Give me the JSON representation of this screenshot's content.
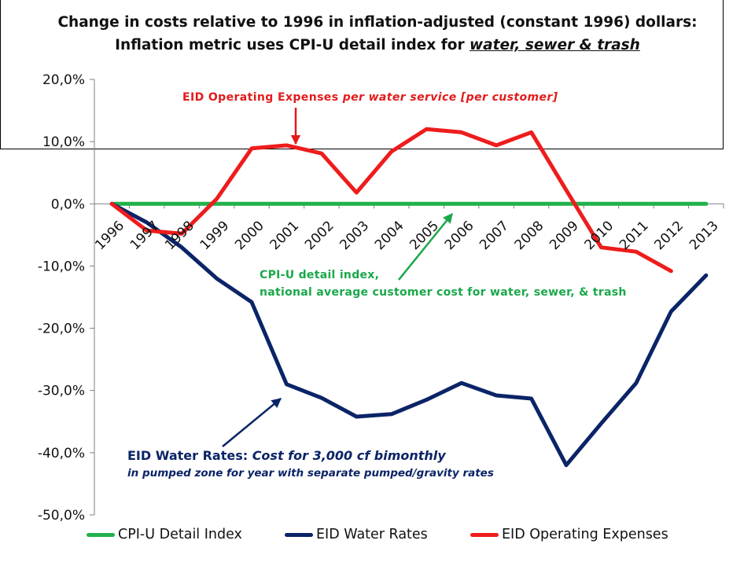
{
  "title_line1": "Change in costs relative to 1996 in inflation-adjusted (constant 1996) dollars:",
  "title_line2_plain": "Inflation metric uses CPI-U detail index for ",
  "title_line2_em": "water, sewer & trash",
  "chart_data": {
    "type": "line",
    "x": [
      "1996",
      "1997",
      "1998",
      "1999",
      "2000",
      "2001",
      "2002",
      "2003",
      "2004",
      "2005",
      "2006",
      "2007",
      "2008",
      "2009",
      "2010",
      "2011",
      "2012",
      "2013"
    ],
    "ylim": [
      -50,
      20
    ],
    "yticks": [
      "20,0%",
      "10,0%",
      "0,0%",
      "-10,0%",
      "-20,0%",
      "-30,0%",
      "-40,0%",
      "-50,0%"
    ],
    "grid": false,
    "legend_position": "bottom",
    "series": [
      {
        "name": "CPI-U Detail Index",
        "color": "#22b14c",
        "values": [
          0,
          0,
          0,
          0,
          0,
          0,
          0,
          0,
          0,
          0,
          0,
          0,
          0,
          0,
          0,
          0,
          0,
          0
        ]
      },
      {
        "name": "EID Water Rates",
        "color": "#0b2467",
        "values": [
          0,
          -3,
          -7,
          -12,
          -15.8,
          -29,
          -31.2,
          -34.2,
          -33.8,
          -31.5,
          -28.8,
          -30.8,
          -31.3,
          -42,
          -35.3,
          -28.8,
          -17.3,
          -11.5
        ]
      },
      {
        "name": "EID Operating Expenses",
        "color": "#ee1c1c",
        "values": [
          0,
          -4.3,
          -4.8,
          0.8,
          8.9,
          9.4,
          8.1,
          1.8,
          8.4,
          12,
          11.5,
          9.4,
          11.5,
          2.2,
          -7,
          -7.7,
          -10.8,
          null
        ]
      }
    ],
    "annotations": {
      "opex_label_plain": "EID Operating Expenses ",
      "opex_label_em": "per water service [per customer]",
      "cpi_label_line1": "CPI-U detail index,",
      "cpi_label_line2": "national average customer cost for water, sewer, & trash",
      "water_label_plain": "EID Water Rates: ",
      "water_label_em": "Cost for 3,000 cf bimonthly",
      "water_label_line2": "in pumped zone for year with separate pumped/gravity rates"
    }
  }
}
